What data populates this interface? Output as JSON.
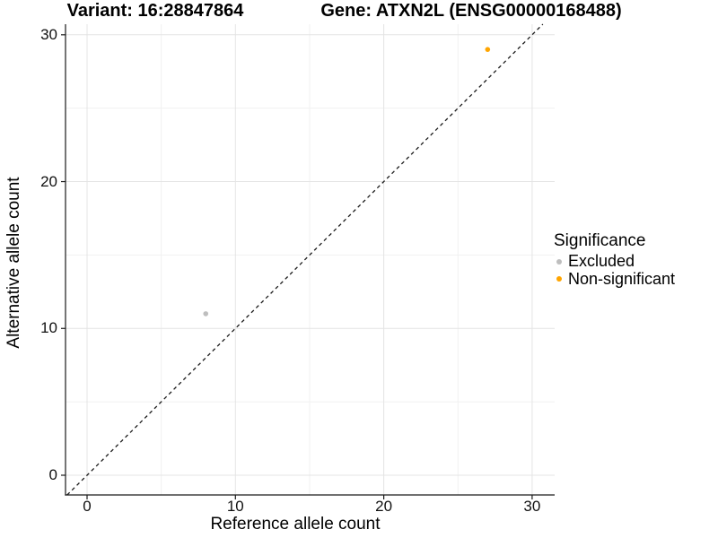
{
  "chart_data": {
    "type": "scatter",
    "title_left": "Variant: 16:28847864",
    "title_right": "Gene: ATXN2L (ENSG00000168488)",
    "xlabel": "Reference allele count",
    "ylabel": "Alternative allele count",
    "xlim": [
      0,
      30
    ],
    "ylim": [
      0,
      30
    ],
    "x_ticks": [
      0,
      10,
      20,
      30
    ],
    "y_ticks": [
      0,
      10,
      20,
      30
    ],
    "grid": "major and minor gridlines, white background",
    "reference_line": {
      "type": "identity y=x",
      "style": "dashed",
      "color": "#1a1a1a"
    },
    "series": [
      {
        "name": "Excluded",
        "color": "#bebebe",
        "points": [
          {
            "x": 8,
            "y": 11
          }
        ]
      },
      {
        "name": "Non-significant",
        "color": "#ffa500",
        "points": [
          {
            "x": 27,
            "y": 29
          }
        ]
      }
    ],
    "legend": {
      "title": "Significance",
      "position": "right"
    }
  },
  "colors": {
    "background": "#ffffff",
    "axis_line": "#1a1a1a",
    "tick_text": "#111111",
    "grid_major": "#e4e4e4",
    "grid_minor": "#f1f1f1"
  }
}
